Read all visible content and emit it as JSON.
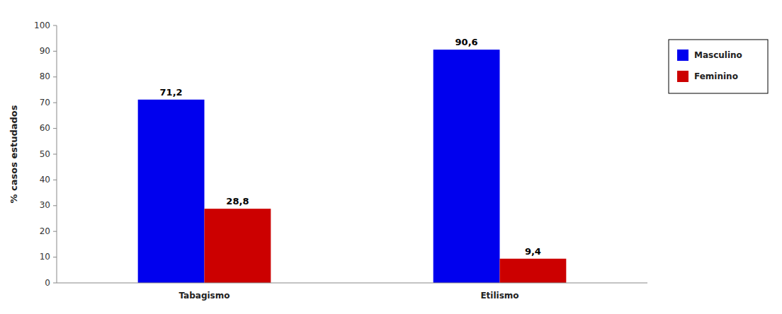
{
  "chart_data": {
    "type": "bar",
    "categories": [
      "Tabagismo",
      "Etilismo"
    ],
    "series": [
      {
        "name": "Masculino",
        "color": "#0000EE",
        "values": [
          71.2,
          90.6
        ],
        "value_labels": [
          "71,2",
          "90,6"
        ]
      },
      {
        "name": "Feminino",
        "color": "#CC0000",
        "values": [
          28.8,
          9.4
        ],
        "value_labels": [
          "28,8",
          "9,4"
        ]
      }
    ],
    "ylabel": "% casos estudados",
    "ylim": [
      0,
      100
    ],
    "yticks": [
      0,
      10,
      20,
      30,
      40,
      50,
      60,
      70,
      80,
      90,
      100
    ],
    "grid": false,
    "legend": "right",
    "data_labels": true
  }
}
